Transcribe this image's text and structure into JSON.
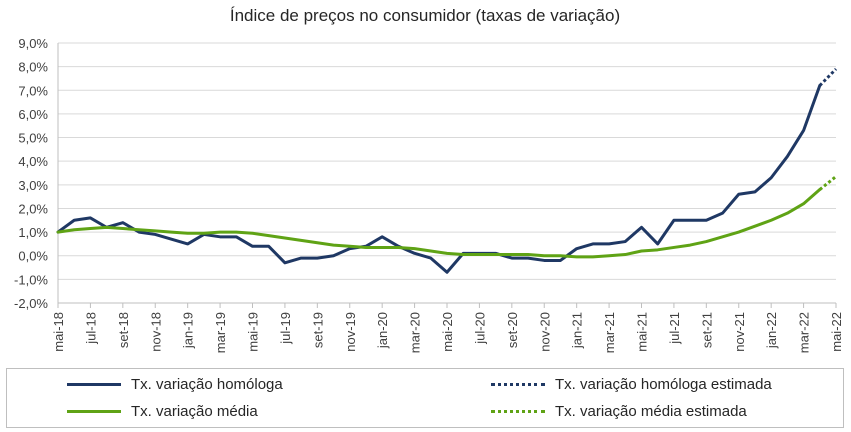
{
  "chart_data": {
    "type": "line",
    "title": "Índice de preços no consumidor  (taxas  de variação)",
    "xlabel": "",
    "ylabel": "",
    "ylim": [
      -2.0,
      9.0
    ],
    "yticks": [
      -2.0,
      -1.0,
      0.0,
      1.0,
      2.0,
      3.0,
      4.0,
      5.0,
      6.0,
      7.0,
      8.0,
      9.0
    ],
    "ytick_labels": [
      "-2,0%",
      "-1,0%",
      "0,0%",
      "1,0%",
      "2,0%",
      "3,0%",
      "4,0%",
      "5,0%",
      "6,0%",
      "7,0%",
      "8,0%",
      "9,0%"
    ],
    "categories": [
      "mai-18",
      "jun-18",
      "jul-18",
      "ago-18",
      "set-18",
      "out-18",
      "nov-18",
      "dez-18",
      "jan-19",
      "fev-19",
      "mar-19",
      "abr-19",
      "mai-19",
      "jun-19",
      "jul-19",
      "ago-19",
      "set-19",
      "out-19",
      "nov-19",
      "dez-19",
      "jan-20",
      "fev-20",
      "mar-20",
      "abr-20",
      "mai-20",
      "jun-20",
      "jul-20",
      "ago-20",
      "set-20",
      "out-20",
      "nov-20",
      "dez-20",
      "jan-21",
      "fev-21",
      "mar-21",
      "abr-21",
      "mai-21",
      "jun-21",
      "jul-21",
      "ago-21",
      "set-21",
      "out-21",
      "nov-21",
      "dez-21",
      "jan-22",
      "fev-22",
      "mar-22",
      "abr-22",
      "mai-22"
    ],
    "tick_labels": [
      "mai-18",
      "jul-18",
      "set-18",
      "nov-18",
      "jan-19",
      "mar-19",
      "mai-19",
      "jul-19",
      "set-19",
      "nov-19",
      "jan-20",
      "mar-20",
      "mai-20",
      "jul-20",
      "set-20",
      "nov-20",
      "jan-21",
      "mar-21",
      "mai-21",
      "jul-21",
      "set-21",
      "nov-21",
      "jan-22",
      "mar-22",
      "mai-22"
    ],
    "grid": true,
    "legend_position": "bottom",
    "series": [
      {
        "name": "Tx. variação homóloga",
        "color": "#1f3864",
        "style": "solid",
        "values": [
          1.0,
          1.5,
          1.6,
          1.2,
          1.4,
          1.0,
          0.9,
          0.7,
          0.5,
          0.9,
          0.8,
          0.8,
          0.4,
          0.4,
          -0.3,
          -0.1,
          -0.1,
          0.0,
          0.3,
          0.4,
          0.8,
          0.4,
          0.1,
          -0.1,
          -0.7,
          0.1,
          0.1,
          0.1,
          -0.1,
          -0.1,
          -0.2,
          -0.2,
          0.3,
          0.5,
          0.5,
          0.6,
          1.2,
          0.5,
          1.5,
          1.5,
          1.5,
          1.8,
          2.6,
          2.7,
          3.3,
          4.2,
          5.3,
          7.2,
          null
        ]
      },
      {
        "name": "Tx. variação homóloga estimada",
        "color": "#1f3864",
        "style": "dotted",
        "values": [
          null,
          null,
          null,
          null,
          null,
          null,
          null,
          null,
          null,
          null,
          null,
          null,
          null,
          null,
          null,
          null,
          null,
          null,
          null,
          null,
          null,
          null,
          null,
          null,
          null,
          null,
          null,
          null,
          null,
          null,
          null,
          null,
          null,
          null,
          null,
          null,
          null,
          null,
          null,
          null,
          null,
          null,
          null,
          null,
          null,
          null,
          null,
          7.2,
          7.9
        ]
      },
      {
        "name": "Tx. variação média",
        "color": "#5fa315",
        "style": "solid",
        "values": [
          1.0,
          1.1,
          1.15,
          1.2,
          1.15,
          1.1,
          1.05,
          1.0,
          0.95,
          0.95,
          1.0,
          1.0,
          0.95,
          0.85,
          0.75,
          0.65,
          0.55,
          0.45,
          0.4,
          0.35,
          0.35,
          0.35,
          0.3,
          0.2,
          0.1,
          0.05,
          0.05,
          0.05,
          0.05,
          0.05,
          0.0,
          0.0,
          -0.05,
          -0.05,
          0.0,
          0.05,
          0.2,
          0.25,
          0.35,
          0.45,
          0.6,
          0.8,
          1.0,
          1.25,
          1.5,
          1.8,
          2.2,
          2.8,
          null
        ]
      },
      {
        "name": "Tx. variação média  estimada",
        "color": "#5fa315",
        "style": "dotted",
        "values": [
          null,
          null,
          null,
          null,
          null,
          null,
          null,
          null,
          null,
          null,
          null,
          null,
          null,
          null,
          null,
          null,
          null,
          null,
          null,
          null,
          null,
          null,
          null,
          null,
          null,
          null,
          null,
          null,
          null,
          null,
          null,
          null,
          null,
          null,
          null,
          null,
          null,
          null,
          null,
          null,
          null,
          null,
          null,
          null,
          null,
          null,
          null,
          2.8,
          3.35
        ]
      }
    ]
  },
  "legend": {
    "items": [
      {
        "label": "Tx. variação homóloga"
      },
      {
        "label": "Tx. variação homóloga estimada"
      },
      {
        "label": "Tx. variação média"
      },
      {
        "label": "Tx. variação média  estimada"
      }
    ]
  }
}
